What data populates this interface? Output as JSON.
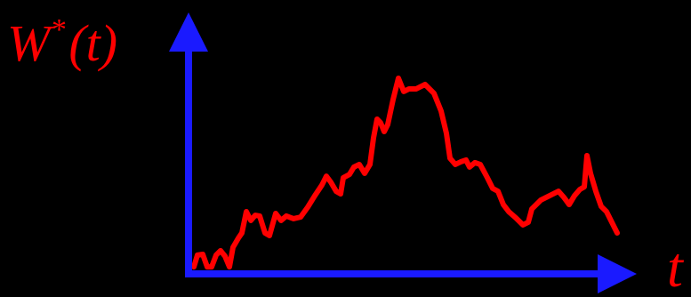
{
  "chart_data": {
    "type": "line",
    "ylabel": [
      "W",
      "*",
      "(t)"
    ],
    "xlabel": "t",
    "axis_color": "#1a1aff",
    "xlim": [
      0,
      100
    ],
    "ylim": [
      0,
      100
    ],
    "series": [
      {
        "color": "#ff0000",
        "x": [
          1.2,
          2.0,
          3.2,
          4.2,
          5.2,
          6.2,
          7.2,
          8.2,
          9.2,
          10.0,
          11.2,
          12.0,
          13.0,
          14.0,
          15.0,
          16.0,
          17.2,
          18.2,
          19.6,
          20.8,
          22.0,
          23.6,
          25.2,
          26.8,
          28.4,
          30.0,
          31.0,
          32.0,
          33.2,
          34.2,
          34.8,
          36.2,
          37.2,
          38.4,
          39.6,
          40.8,
          41.6,
          42.4,
          43.2,
          44.0,
          44.8,
          46.0,
          47.2,
          48.4,
          49.6,
          51.2,
          53.2,
          55.2,
          56.8,
          58.0,
          58.8,
          60.0,
          61.2,
          62.4,
          63.2,
          64.4,
          65.6,
          67.2,
          68.4,
          69.6,
          70.8,
          72.0,
          73.6,
          75.2,
          76.4,
          77.2,
          79.2,
          81.2,
          83.2,
          84.4,
          85.6,
          86.8,
          88.0,
          89.0,
          89.6,
          90.4,
          91.6,
          92.8,
          94.0,
          95.2,
          96.4
        ],
        "values": [
          2.7,
          7.2,
          7.5,
          2.7,
          2.7,
          7.2,
          8.9,
          6.8,
          2.7,
          10.2,
          13.7,
          15.7,
          23.9,
          20.5,
          22.5,
          22.2,
          15.7,
          14.7,
          23.2,
          20.5,
          22.2,
          21.2,
          21.8,
          25.6,
          30.0,
          34.1,
          37.5,
          35.2,
          31.7,
          30.7,
          36.9,
          38.2,
          41.0,
          42.0,
          38.6,
          42.0,
          52.2,
          59.4,
          58.0,
          54.6,
          57.3,
          66.9,
          75.1,
          70.0,
          71.0,
          71.0,
          72.7,
          69.3,
          62.5,
          53.9,
          44.4,
          42.0,
          43.0,
          43.7,
          41.0,
          42.7,
          42.0,
          36.9,
          32.8,
          31.7,
          26.6,
          23.9,
          21.5,
          18.8,
          19.8,
          24.9,
          28.3,
          30.0,
          31.7,
          29.4,
          26.6,
          30.0,
          32.4,
          33.4,
          45.4,
          38.6,
          31.7,
          25.9,
          23.9,
          19.8,
          15.7
        ]
      }
    ]
  }
}
